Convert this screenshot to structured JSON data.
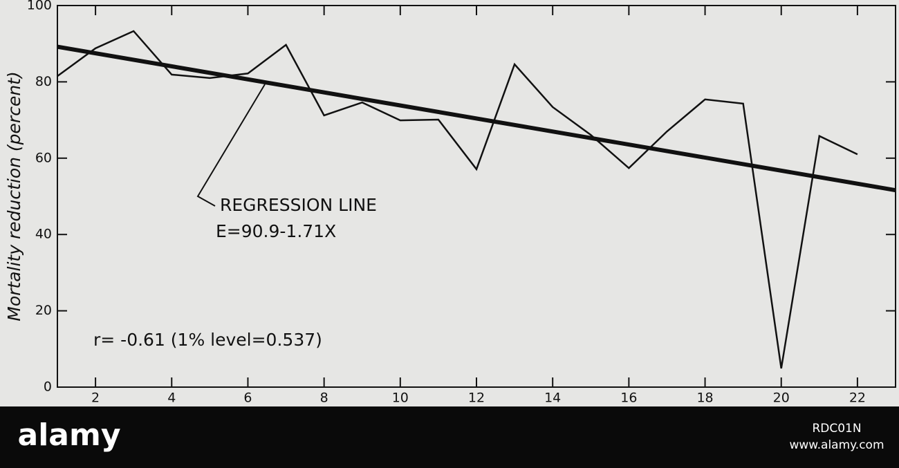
{
  "chart_data": {
    "type": "line",
    "y_label": "Mortality reduction (percent)",
    "x": [
      1,
      2,
      3,
      4,
      5,
      6,
      7,
      8,
      9,
      10,
      11,
      12,
      13,
      14,
      15,
      16,
      17,
      18,
      19,
      20,
      21,
      22
    ],
    "series": [
      {
        "color": "#111111",
        "values": [
          81.5,
          88.8,
          93.3,
          81.9,
          81,
          82.2,
          89.7,
          71.2,
          74.6,
          69.9,
          70.1,
          57.1,
          84.6,
          73.4,
          66.1,
          57.4,
          67,
          75.4,
          74.3,
          4.9,
          65.8,
          61
        ]
      }
    ],
    "regression": {
      "x": [
        1,
        23
      ],
      "values": [
        89.2,
        51.6
      ],
      "color": "#111111"
    },
    "annotations": [
      "REGRESSION LINE",
      "E=90.9-1.71X",
      "r= -0.61 (1% level=0.537)"
    ],
    "xlim": [
      1,
      23
    ],
    "xticks": [
      2,
      4,
      6,
      8,
      10,
      12,
      14,
      16,
      18,
      20,
      22
    ],
    "ylim": [
      0,
      100
    ],
    "yticks": [
      0,
      20,
      40,
      60,
      80,
      100
    ]
  },
  "watermark": {
    "brand": "alamy",
    "id": "RDC01N",
    "url": "www.alamy.com"
  }
}
